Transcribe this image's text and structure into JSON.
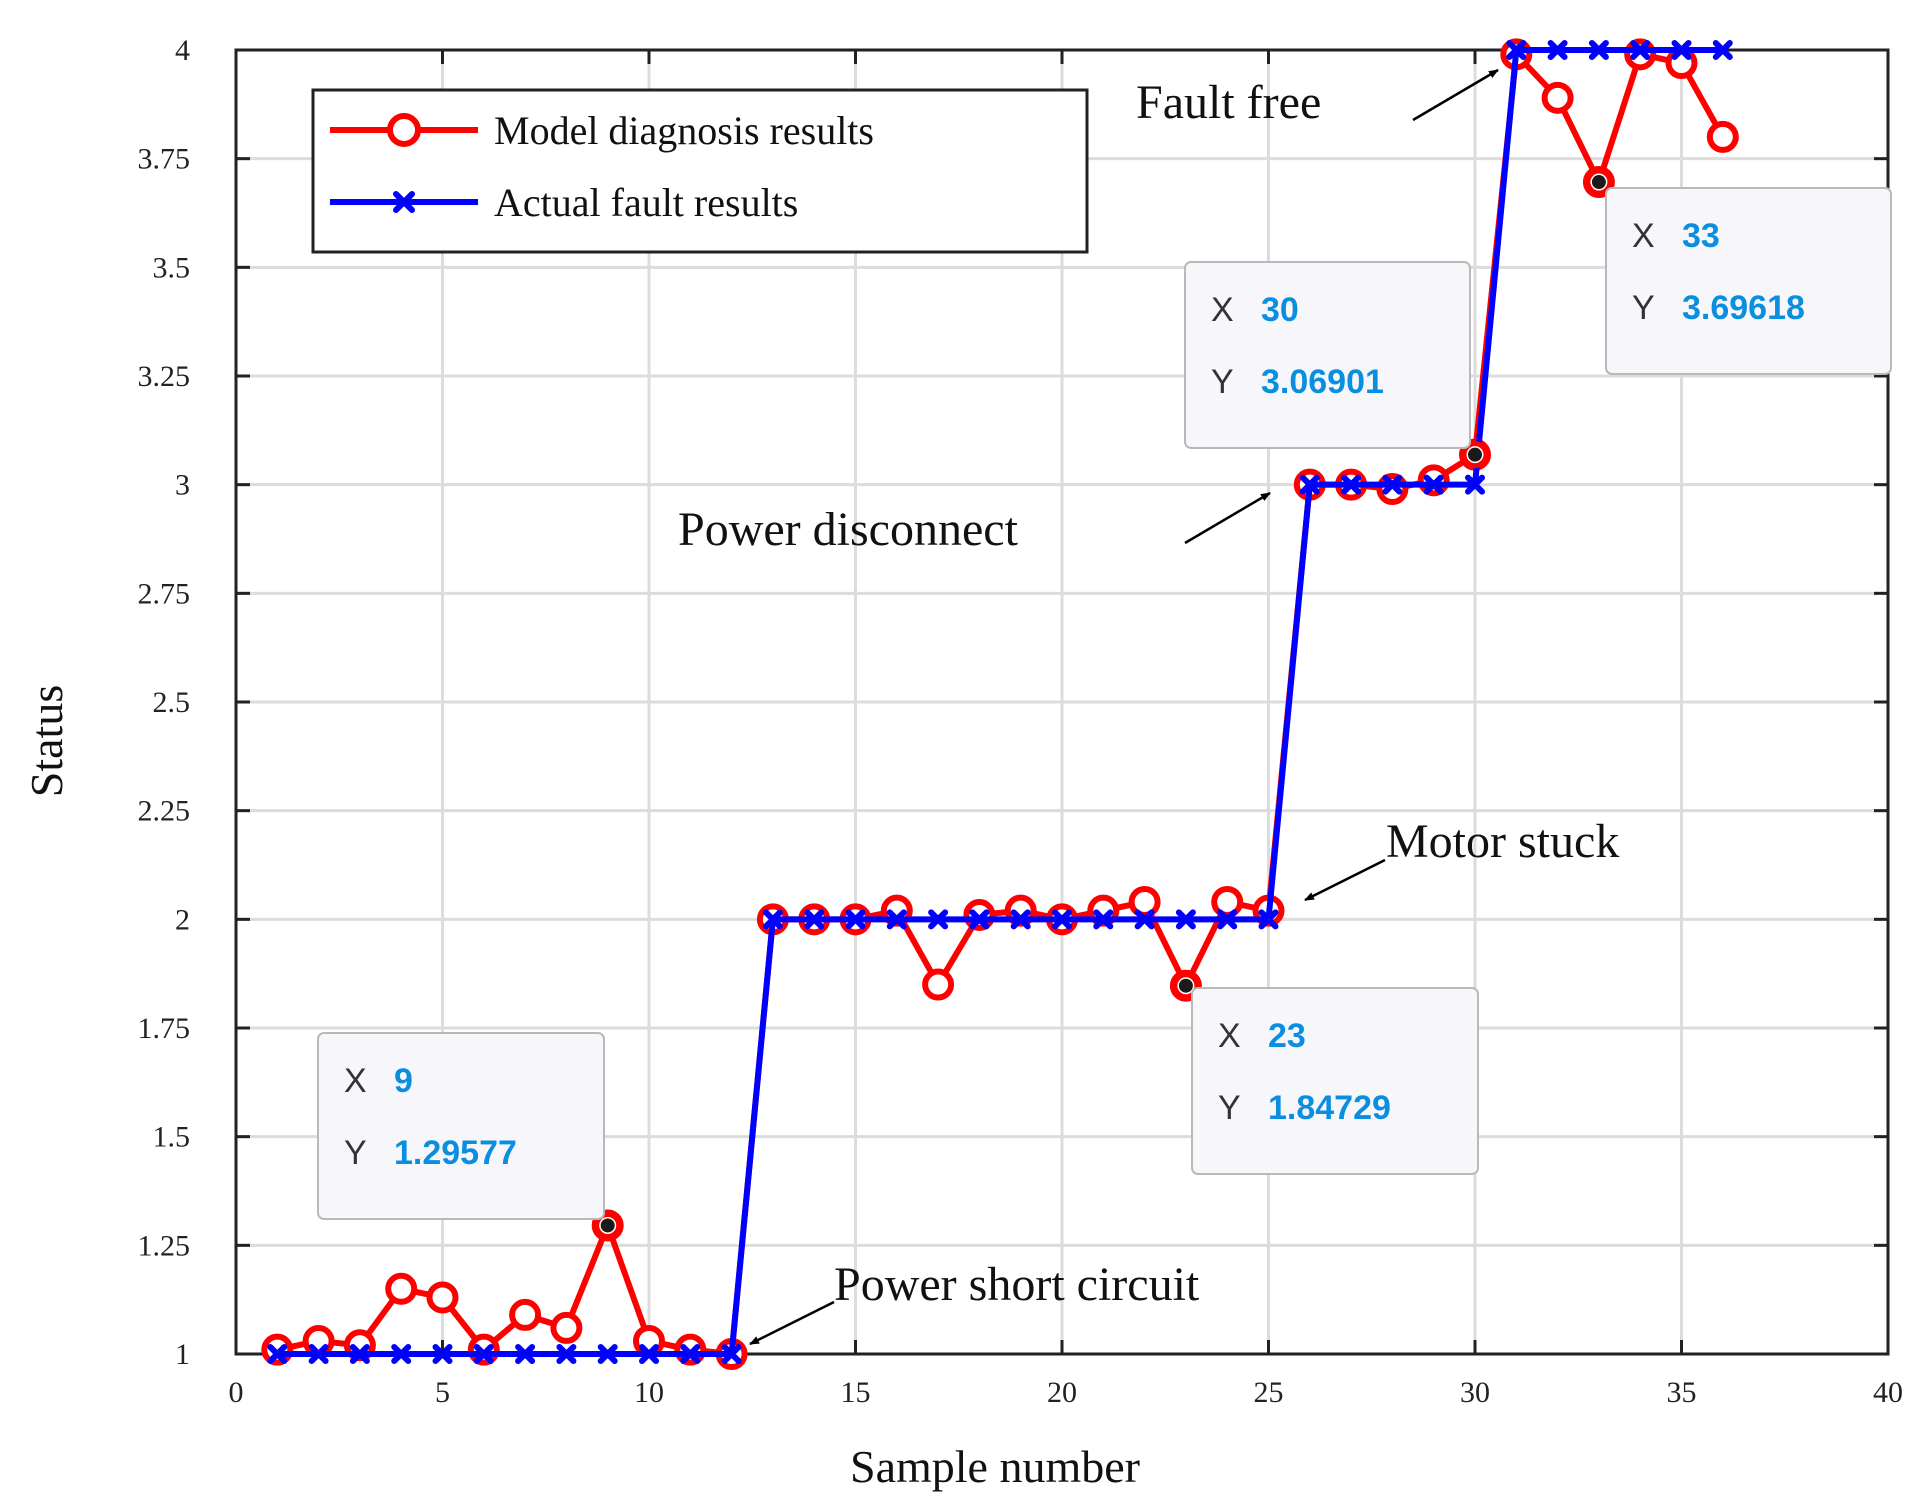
{
  "chart_data": {
    "type": "line",
    "title": "",
    "xlabel": "Sample number",
    "ylabel": "Status",
    "xlim": [
      0,
      40
    ],
    "ylim": [
      1,
      4
    ],
    "xticks": [
      0,
      5,
      10,
      15,
      20,
      25,
      30,
      35,
      40
    ],
    "yticks": [
      1,
      1.25,
      1.5,
      1.75,
      2,
      2.25,
      2.5,
      2.75,
      3,
      3.25,
      3.5,
      3.75,
      4
    ],
    "ytick_labels": [
      "1",
      "1.25",
      "1.5",
      "1.75",
      "2",
      "2.25",
      "2.5",
      "2.75",
      "3",
      "3.25",
      "3.5",
      "3.75",
      "4"
    ],
    "grid": true,
    "legend_position": "top-left",
    "x": [
      1,
      2,
      3,
      4,
      5,
      6,
      7,
      8,
      9,
      10,
      11,
      12,
      13,
      14,
      15,
      16,
      17,
      18,
      19,
      20,
      21,
      22,
      23,
      24,
      25,
      26,
      27,
      28,
      29,
      30,
      31,
      32,
      33,
      34,
      35,
      36
    ],
    "series": [
      {
        "name": "Model diagnosis results",
        "color": "#ff0000",
        "marker": "circle",
        "values": [
          1.01,
          1.03,
          1.02,
          1.15,
          1.13,
          1.01,
          1.09,
          1.06,
          1.29577,
          1.03,
          1.01,
          1.0,
          2.0,
          2.0,
          2.0,
          2.02,
          1.85,
          2.01,
          2.02,
          2.0,
          2.02,
          2.04,
          1.84729,
          2.04,
          2.02,
          3.0,
          3.0,
          2.99,
          3.01,
          3.06901,
          3.99,
          3.89,
          3.69618,
          3.99,
          3.97,
          3.8
        ]
      },
      {
        "name": "Actual fault results",
        "color": "#0000ff",
        "marker": "x",
        "values": [
          1,
          1,
          1,
          1,
          1,
          1,
          1,
          1,
          1,
          1,
          1,
          1,
          2,
          2,
          2,
          2,
          2,
          2,
          2,
          2,
          2,
          2,
          2,
          2,
          2,
          3,
          3,
          3,
          3,
          3,
          4,
          4,
          4,
          4,
          4,
          4
        ]
      }
    ],
    "annotations": [
      {
        "text": "Fault free",
        "target": [
          31,
          4.0
        ]
      },
      {
        "text": "Power disconnect",
        "target": [
          26,
          3.0
        ]
      },
      {
        "text": "Motor stuck",
        "target": [
          25,
          2.0
        ]
      },
      {
        "text": "Power short circuit",
        "target": [
          12,
          1.0
        ]
      }
    ],
    "datatips": [
      {
        "x_label": "X",
        "y_label": "Y",
        "x": "9",
        "y": "1.29577",
        "point": [
          9,
          1.29577
        ]
      },
      {
        "x_label": "X",
        "y_label": "Y",
        "x": "30",
        "y": "3.06901",
        "point": [
          30,
          3.06901
        ]
      },
      {
        "x_label": "X",
        "y_label": "Y",
        "x": "23",
        "y": "1.84729",
        "point": [
          23,
          1.84729
        ]
      },
      {
        "x_label": "X",
        "y_label": "Y",
        "x": "33",
        "y": "3.69618",
        "point": [
          33,
          3.69618
        ]
      }
    ],
    "datatip_value_color": "#0a8fe0"
  }
}
